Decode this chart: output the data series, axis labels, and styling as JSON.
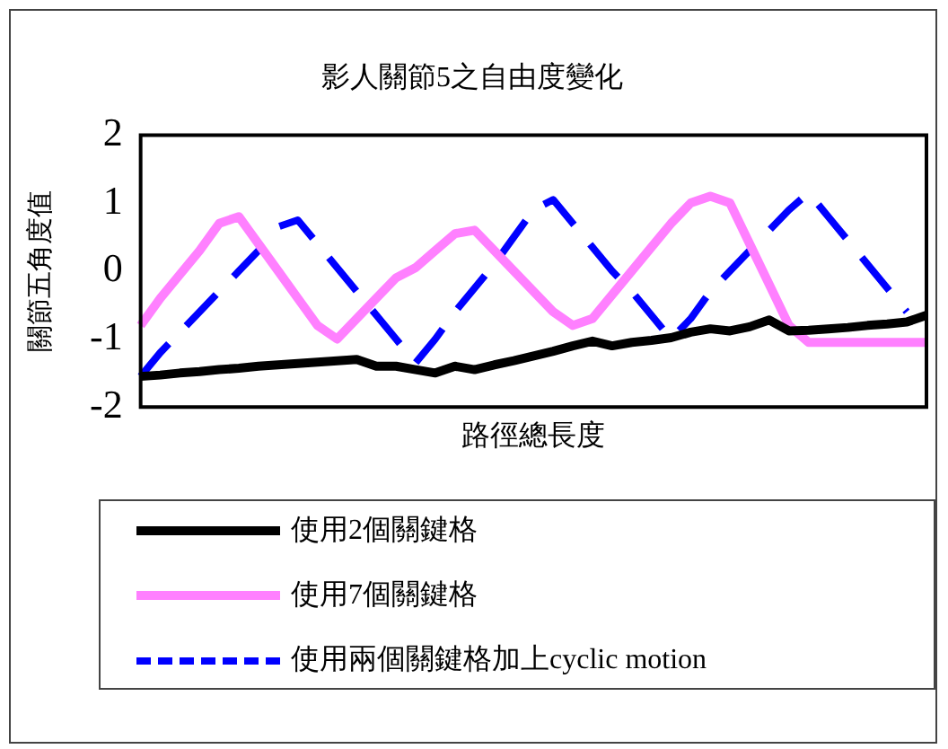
{
  "chart_data": {
    "type": "line",
    "title": "影人關節5之自由度變化",
    "xlabel": "路徑總長度",
    "ylabel": "關節五角度值",
    "categories": [
      null,
      null,
      null,
      null,
      null,
      null,
      null,
      null,
      null,
      null,
      null,
      null,
      null,
      null,
      null,
      null,
      null,
      null,
      null,
      null,
      null,
      null,
      null,
      null,
      null,
      null,
      null,
      null,
      null,
      null,
      null,
      null,
      null,
      null,
      null,
      null,
      null,
      null,
      null,
      null,
      null
    ],
    "ylim": [
      -2,
      2
    ],
    "yticks": [
      -2,
      -1,
      0,
      1,
      2
    ],
    "grid": false,
    "legend": "bottom",
    "marker": "none",
    "series": [
      {
        "name": "使用2個關鍵格",
        "color": "#000000",
        "line_style": "solid",
        "values": [
          -1.55,
          -1.53,
          -1.5,
          -1.48,
          -1.45,
          -1.43,
          -1.4,
          -1.38,
          -1.36,
          -1.34,
          -1.32,
          -1.3,
          -1.4,
          -1.4,
          -1.45,
          -1.5,
          -1.4,
          -1.45,
          -1.38,
          -1.32,
          -1.25,
          -1.18,
          -1.1,
          -1.03,
          -1.1,
          -1.05,
          -1.02,
          -0.98,
          -0.9,
          -0.85,
          -0.88,
          -0.82,
          -0.72,
          -0.88,
          -0.87,
          -0.85,
          -0.83,
          -0.8,
          -0.78,
          -0.75,
          -0.65
        ]
      },
      {
        "name": "使用7個關鍵格",
        "color": "#ff80ff",
        "line_style": "solid",
        "values": [
          -0.8,
          -0.4,
          -0.05,
          0.3,
          0.7,
          0.8,
          0.4,
          0.0,
          -0.4,
          -0.8,
          -1.0,
          -0.7,
          -0.4,
          -0.1,
          0.05,
          0.3,
          0.55,
          0.6,
          0.3,
          0.0,
          -0.3,
          -0.6,
          -0.8,
          -0.7,
          -0.35,
          0.0,
          0.35,
          0.7,
          1.0,
          1.1,
          1.0,
          0.4,
          -0.2,
          -0.8,
          -1.05,
          -1.05,
          -1.05,
          -1.05,
          -1.05,
          -1.05,
          -1.05
        ]
      },
      {
        "name": "使用兩個關鍵格加上cyclic motion",
        "color": "#0000ff",
        "line_style": "dashed",
        "values": [
          -1.55,
          -1.2,
          -0.9,
          -0.6,
          -0.3,
          0.0,
          0.3,
          0.65,
          0.75,
          0.4,
          0.05,
          -0.3,
          -0.65,
          -1.0,
          -1.35,
          -1.0,
          -0.6,
          -0.25,
          0.1,
          0.5,
          0.9,
          1.05,
          0.7,
          0.35,
          0.0,
          -0.3,
          -0.65,
          -1.0,
          -0.7,
          -0.3,
          0.0,
          0.3,
          0.6,
          0.9,
          1.15,
          0.8,
          0.45,
          0.1,
          -0.25,
          -0.6,
          null
        ]
      }
    ]
  }
}
